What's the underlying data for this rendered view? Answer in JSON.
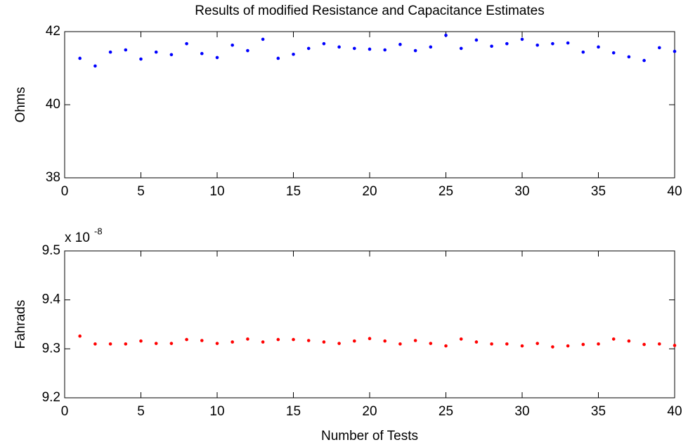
{
  "chart_data": [
    {
      "type": "scatter",
      "title": "Results of modified Resistance and Capacitance Estimates",
      "y_label": "Ohms",
      "x": [
        1,
        2,
        3,
        4,
        5,
        6,
        7,
        8,
        9,
        10,
        11,
        12,
        13,
        14,
        15,
        16,
        17,
        18,
        19,
        20,
        21,
        22,
        23,
        24,
        25,
        26,
        27,
        28,
        29,
        30,
        31,
        32,
        33,
        34,
        35,
        36,
        37,
        38,
        39,
        40
      ],
      "values": [
        41.27,
        41.06,
        41.44,
        41.5,
        41.25,
        41.44,
        41.37,
        41.67,
        41.4,
        41.29,
        41.63,
        41.48,
        41.79,
        41.27,
        41.38,
        41.54,
        41.67,
        41.58,
        41.54,
        41.52,
        41.5,
        41.65,
        41.48,
        41.58,
        41.9,
        41.54,
        41.77,
        41.6,
        41.67,
        41.79,
        41.63,
        41.67,
        41.69,
        41.44,
        41.58,
        41.42,
        41.31,
        41.21,
        41.56,
        41.46
      ],
      "color": "#0000ff",
      "xlim": [
        0,
        40
      ],
      "xticks": [
        0,
        5,
        10,
        15,
        20,
        25,
        30,
        35,
        40
      ],
      "ylim": [
        38,
        42
      ],
      "yticks": [
        38,
        40,
        42
      ]
    },
    {
      "type": "scatter",
      "x_label": "Number of Tests",
      "y_label": "Fahrads",
      "y_multiplier": "x 10",
      "y_multiplier_exponent": "-8",
      "x": [
        1,
        2,
        3,
        4,
        5,
        6,
        7,
        8,
        9,
        10,
        11,
        12,
        13,
        14,
        15,
        16,
        17,
        18,
        19,
        20,
        21,
        22,
        23,
        24,
        25,
        26,
        27,
        28,
        29,
        30,
        31,
        32,
        33,
        34,
        35,
        36,
        37,
        38,
        39,
        40
      ],
      "values": [
        9.326,
        9.31,
        9.31,
        9.31,
        9.316,
        9.311,
        9.311,
        9.319,
        9.317,
        9.311,
        9.314,
        9.32,
        9.314,
        9.319,
        9.319,
        9.317,
        9.314,
        9.311,
        9.316,
        9.321,
        9.316,
        9.31,
        9.317,
        9.311,
        9.306,
        9.32,
        9.314,
        9.31,
        9.31,
        9.306,
        9.311,
        9.304,
        9.306,
        9.309,
        9.31,
        9.32,
        9.316,
        9.309,
        9.31,
        9.307
      ],
      "color": "#ff0000",
      "xlim": [
        0,
        40
      ],
      "xticks": [
        0,
        5,
        10,
        15,
        20,
        25,
        30,
        35,
        40
      ],
      "ylim": [
        9.2,
        9.5
      ],
      "yticks": [
        9.2,
        9.3,
        9.4,
        9.5
      ]
    }
  ]
}
